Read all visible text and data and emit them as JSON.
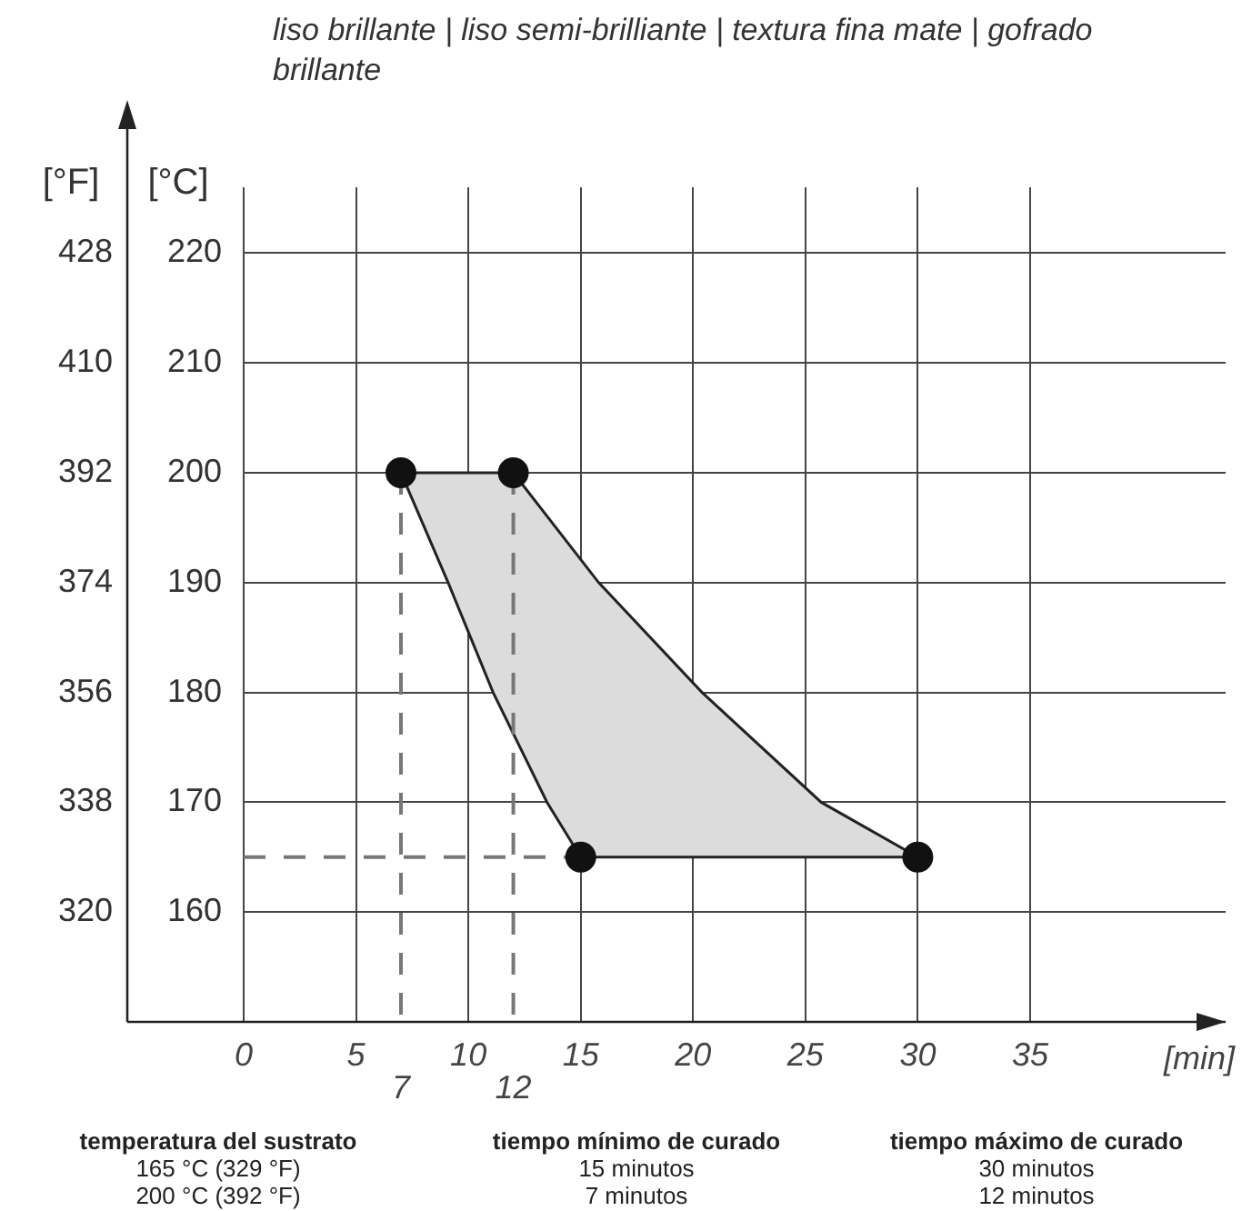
{
  "chart_data": {
    "type": "area",
    "title": "liso brillante | liso semi-brilliante | textura fina mate | gofrado brillante",
    "xlabel": "[min]",
    "ylabel": "[°C]",
    "y2label": "[°F]",
    "xlim": [
      0,
      43.7
    ],
    "xticks": [
      0,
      5,
      10,
      15,
      20,
      25,
      30,
      35
    ],
    "ylim": [
      150,
      226
    ],
    "yticks": [
      160,
      170,
      180,
      190,
      200,
      210,
      220
    ],
    "y2lim": [
      302,
      438.8
    ],
    "y2ticks": [
      320,
      338,
      356,
      374,
      392,
      410,
      428
    ],
    "grid": true,
    "series": [
      {
        "type": "area",
        "color": "#dcdcdc",
        "x": [
          7,
          12,
          15.8,
          20.4,
          25.7,
          30,
          15,
          13.5,
          11.1,
          9.1,
          7
        ],
        "values": [
          200,
          200,
          190,
          180,
          170,
          165,
          165,
          170,
          180,
          190,
          200
        ]
      },
      {
        "type": "line",
        "line_style": "dashed",
        "color": "#777777",
        "x": [
          7,
          7
        ],
        "values": [
          200,
          150
        ]
      },
      {
        "type": "line",
        "line_style": "dashed",
        "color": "#777777",
        "x": [
          12,
          12
        ],
        "values": [
          200,
          150
        ]
      },
      {
        "type": "line",
        "line_style": "dashed",
        "color": "#777777",
        "x": [
          0,
          15
        ],
        "values": [
          165,
          165
        ]
      },
      {
        "type": "scatter",
        "marker": "circle",
        "color": "#111111",
        "x": [
          7,
          12,
          30,
          15
        ],
        "values": [
          200,
          200,
          165,
          165
        ]
      }
    ],
    "annotations": [
      "temperatura del sustrato",
      "tiempo mínimo de curado",
      "tiempo máximo de curado",
      "165 °C (329 °F)",
      "15 minutos",
      "30 minutos",
      "200 °C (392 °F)",
      "7 minutos",
      "12 minutos",
      {
        "text": "7",
        "x": 7,
        "y": 150
      },
      {
        "text": "12",
        "x": 12,
        "y": 150
      }
    ]
  }
}
